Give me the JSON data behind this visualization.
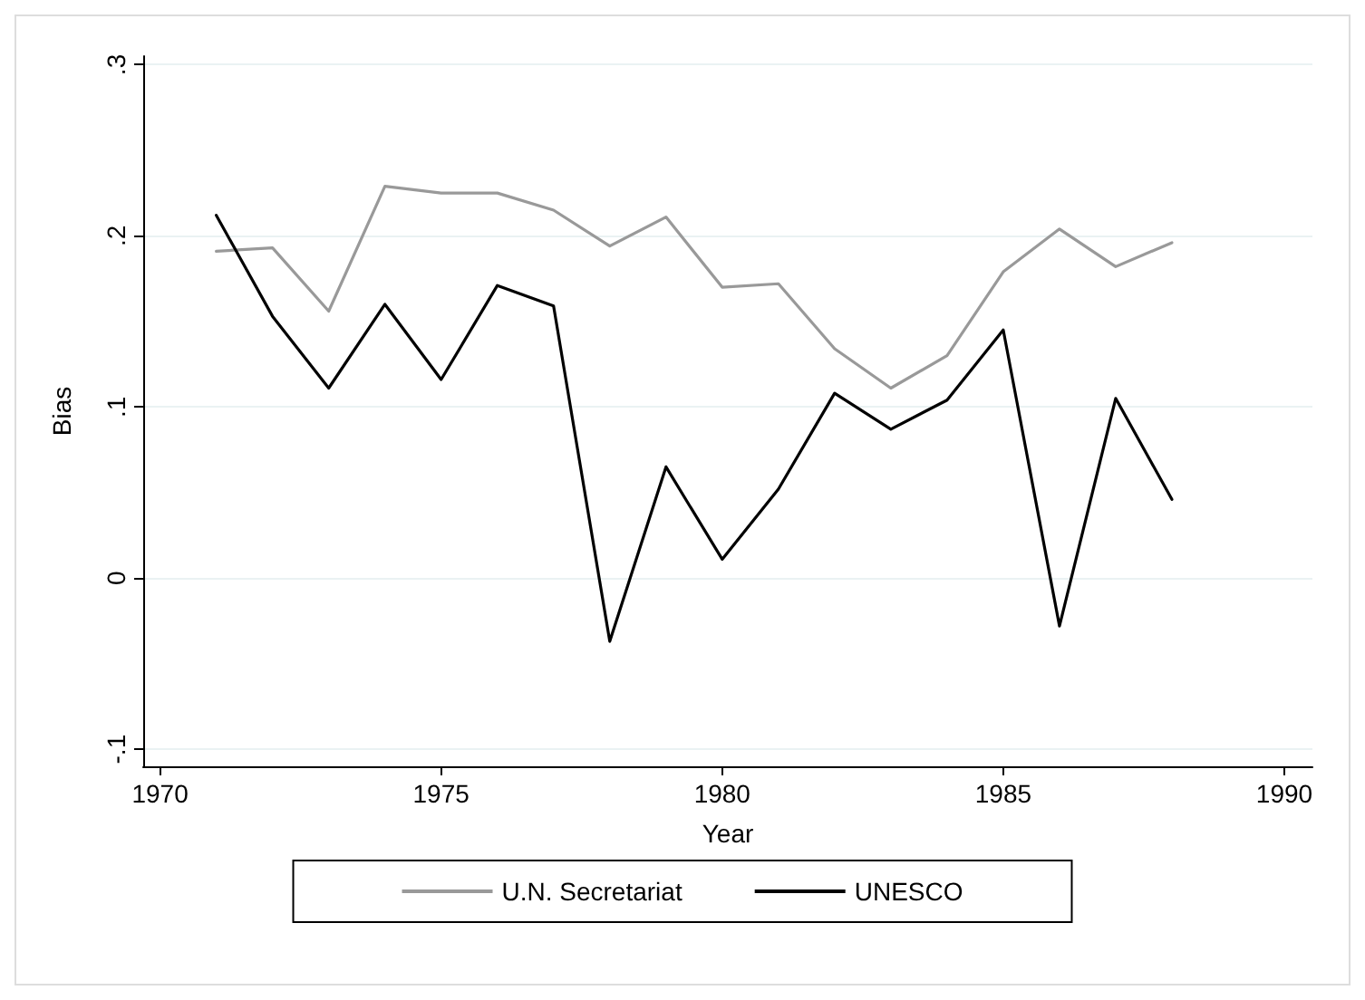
{
  "chart_data": {
    "type": "line",
    "xlabel": "Year",
    "ylabel": "Bias",
    "x": [
      1971,
      1972,
      1973,
      1974,
      1975,
      1976,
      1977,
      1978,
      1979,
      1980,
      1981,
      1982,
      1983,
      1984,
      1985,
      1986,
      1987,
      1988
    ],
    "series": [
      {
        "name": "U.N. Secretariat",
        "color": "#999999",
        "values": [
          0.191,
          0.193,
          0.156,
          0.229,
          0.225,
          0.225,
          0.215,
          0.194,
          0.211,
          0.17,
          0.172,
          0.134,
          0.111,
          0.13,
          0.179,
          0.204,
          0.182,
          0.196
        ]
      },
      {
        "name": "UNESCO",
        "color": "#000000",
        "values": [
          0.212,
          0.153,
          0.111,
          0.16,
          0.116,
          0.171,
          0.159,
          -0.037,
          0.065,
          0.011,
          0.052,
          0.108,
          0.087,
          0.104,
          0.145,
          -0.028,
          0.105,
          0.046
        ]
      }
    ],
    "xlim": [
      1969.7,
      1990.5
    ],
    "xticks": [
      1970,
      1975,
      1980,
      1985,
      1990
    ],
    "ylim": [
      -0.11,
      0.305
    ],
    "yticks": [
      {
        "value": -0.1,
        "label": "-.1"
      },
      {
        "value": 0,
        "label": "0"
      },
      {
        "value": 0.1,
        "label": ".1"
      },
      {
        "value": 0.2,
        "label": ".2"
      },
      {
        "value": 0.3,
        "label": ".3"
      }
    ],
    "grid": "y",
    "legend": "bottom",
    "marker": "none",
    "line_style": "solid"
  }
}
